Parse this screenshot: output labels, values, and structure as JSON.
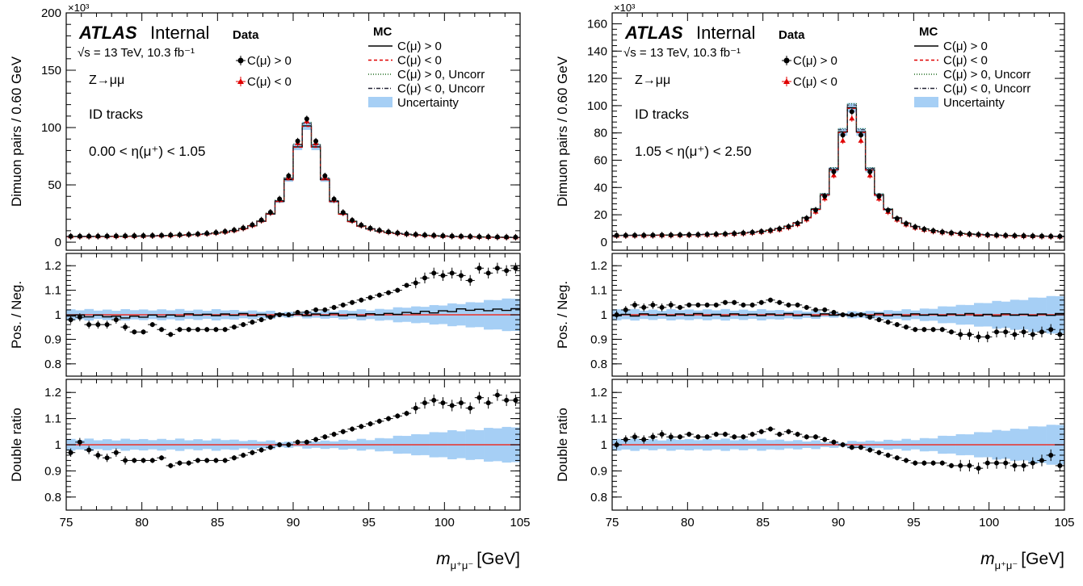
{
  "chart_data": [
    {
      "type": "line",
      "panel": "left",
      "atlas_label": "ATLAS",
      "atlas_status": "Internal",
      "energy_label": "√s = 13 TeV, 10.3 fb⁻¹",
      "process_label": "Z→μμ",
      "tracks_label": "ID tracks",
      "eta_label": "0.00 < η(μ⁺) < 1.05",
      "multiplier": "×10³",
      "legend": {
        "data_header": "Data",
        "mc_header": "MC",
        "data_entries": [
          "C(μ) > 0",
          "C(μ) < 0"
        ],
        "mc_entries": [
          "C(μ) > 0",
          "C(μ) < 0",
          "C(μ) > 0, Uncorr",
          "C(μ) < 0, Uncorr",
          "Uncertainty"
        ]
      },
      "xlabel": "m_{μ⁺μ⁻} [GeV]",
      "xlabel_main": "m",
      "xlabel_sub": "μ⁺μ⁻",
      "xlabel_unit": "[GeV]",
      "xlim": [
        75,
        105
      ],
      "x_ticks": [
        "75",
        "80",
        "85",
        "90",
        "95",
        "100",
        "105"
      ],
      "top": {
        "ylabel": "Dimuon pairs / 0.60 GeV",
        "ylim": [
          -7,
          200
        ],
        "y_ticks": [
          "0",
          "50",
          "100",
          "150",
          "200"
        ],
        "peak_mc": 99,
        "peak_data": 105,
        "peak_data_neg": 103
      },
      "ratio": {
        "ylabel": "Pos. / Neg.",
        "ylim": [
          0.75,
          1.25
        ],
        "y_ticks": [
          "0.8",
          "0.9",
          "1",
          "1.1",
          "1.2"
        ],
        "points": [
          [
            75.3,
            0.98
          ],
          [
            75.9,
            0.99
          ],
          [
            76.5,
            0.96
          ],
          [
            77.1,
            0.96
          ],
          [
            77.7,
            0.96
          ],
          [
            78.3,
            0.98
          ],
          [
            78.9,
            0.95
          ],
          [
            79.5,
            0.93
          ],
          [
            80.1,
            0.93
          ],
          [
            80.7,
            0.96
          ],
          [
            81.3,
            0.94
          ],
          [
            81.9,
            0.92
          ],
          [
            82.5,
            0.94
          ],
          [
            83.1,
            0.94
          ],
          [
            83.7,
            0.94
          ],
          [
            84.3,
            0.94
          ],
          [
            84.9,
            0.94
          ],
          [
            85.5,
            0.94
          ],
          [
            86.1,
            0.95
          ],
          [
            86.7,
            0.96
          ],
          [
            87.3,
            0.97
          ],
          [
            87.9,
            0.98
          ],
          [
            88.5,
            0.99
          ],
          [
            89.1,
            1.0
          ],
          [
            89.7,
            1.0
          ],
          [
            90.3,
            1.01
          ],
          [
            90.9,
            1.01
          ],
          [
            91.5,
            1.02
          ],
          [
            92.1,
            1.02
          ],
          [
            92.7,
            1.03
          ],
          [
            93.3,
            1.04
          ],
          [
            93.9,
            1.05
          ],
          [
            94.5,
            1.06
          ],
          [
            95.1,
            1.07
          ],
          [
            95.7,
            1.08
          ],
          [
            96.3,
            1.09
          ],
          [
            96.9,
            1.1
          ],
          [
            97.5,
            1.12
          ],
          [
            98.1,
            1.13
          ],
          [
            98.7,
            1.15
          ],
          [
            99.3,
            1.17
          ],
          [
            99.9,
            1.16
          ],
          [
            100.5,
            1.17
          ],
          [
            101.1,
            1.16
          ],
          [
            101.7,
            1.14
          ],
          [
            102.3,
            1.19
          ],
          [
            102.9,
            1.17
          ],
          [
            103.5,
            1.19
          ],
          [
            104.1,
            1.18
          ],
          [
            104.7,
            1.19
          ]
        ],
        "mc_line": [
          [
            75,
            1.0
          ],
          [
            79,
            0.99
          ],
          [
            83,
            1.0
          ],
          [
            87,
            1.0
          ],
          [
            91,
            1.0
          ],
          [
            95,
            1.0
          ],
          [
            99,
            1.01
          ],
          [
            101,
            1.02
          ],
          [
            105,
            1.02
          ]
        ],
        "band_halfwidth": [
          [
            75,
            0.02
          ],
          [
            85,
            0.02
          ],
          [
            90,
            0.01
          ],
          [
            95,
            0.02
          ],
          [
            100,
            0.04
          ],
          [
            105,
            0.07
          ]
        ]
      },
      "double": {
        "ylabel": "Double ratio",
        "ylim": [
          0.75,
          1.25
        ],
        "y_ticks": [
          "0.8",
          "0.9",
          "1",
          "1.1",
          "1.2"
        ],
        "points": [
          [
            75.3,
            0.97
          ],
          [
            75.9,
            1.01
          ],
          [
            76.5,
            0.98
          ],
          [
            77.1,
            0.96
          ],
          [
            77.7,
            0.95
          ],
          [
            78.3,
            0.97
          ],
          [
            78.9,
            0.94
          ],
          [
            79.5,
            0.94
          ],
          [
            80.1,
            0.94
          ],
          [
            80.7,
            0.94
          ],
          [
            81.3,
            0.95
          ],
          [
            81.9,
            0.92
          ],
          [
            82.5,
            0.93
          ],
          [
            83.1,
            0.93
          ],
          [
            83.7,
            0.94
          ],
          [
            84.3,
            0.94
          ],
          [
            84.9,
            0.94
          ],
          [
            85.5,
            0.94
          ],
          [
            86.1,
            0.95
          ],
          [
            86.7,
            0.96
          ],
          [
            87.3,
            0.97
          ],
          [
            87.9,
            0.98
          ],
          [
            88.5,
            0.99
          ],
          [
            89.1,
            1.0
          ],
          [
            89.7,
            1.0
          ],
          [
            90.3,
            1.01
          ],
          [
            90.9,
            1.01
          ],
          [
            91.5,
            1.02
          ],
          [
            92.1,
            1.03
          ],
          [
            92.7,
            1.04
          ],
          [
            93.3,
            1.05
          ],
          [
            93.9,
            1.06
          ],
          [
            94.5,
            1.07
          ],
          [
            95.1,
            1.08
          ],
          [
            95.7,
            1.09
          ],
          [
            96.3,
            1.1
          ],
          [
            96.9,
            1.11
          ],
          [
            97.5,
            1.12
          ],
          [
            98.1,
            1.14
          ],
          [
            98.7,
            1.16
          ],
          [
            99.3,
            1.17
          ],
          [
            99.9,
            1.16
          ],
          [
            100.5,
            1.15
          ],
          [
            101.1,
            1.16
          ],
          [
            101.7,
            1.14
          ],
          [
            102.3,
            1.18
          ],
          [
            102.9,
            1.16
          ],
          [
            103.5,
            1.19
          ],
          [
            104.1,
            1.17
          ],
          [
            104.7,
            1.17
          ]
        ],
        "band_halfwidth": [
          [
            75,
            0.02
          ],
          [
            85,
            0.02
          ],
          [
            90,
            0.01
          ],
          [
            95,
            0.02
          ],
          [
            100,
            0.05
          ],
          [
            105,
            0.07
          ]
        ]
      }
    },
    {
      "type": "line",
      "panel": "right",
      "atlas_label": "ATLAS",
      "atlas_status": "Internal",
      "energy_label": "√s = 13 TeV, 10.3 fb⁻¹",
      "process_label": "Z→μμ",
      "tracks_label": "ID tracks",
      "eta_label": "1.05 < η(μ⁺) < 2.50",
      "multiplier": "×10³",
      "legend": {
        "data_header": "Data",
        "mc_header": "MC",
        "data_entries": [
          "C(μ) > 0",
          "C(μ) < 0"
        ],
        "mc_entries": [
          "C(μ) > 0",
          "C(μ) < 0",
          "C(μ) > 0, Uncorr",
          "C(μ) < 0, Uncorr",
          "Uncertainty"
        ]
      },
      "xlabel": "m_{μ⁺μ⁻} [GeV]",
      "xlabel_main": "m",
      "xlabel_sub": "μ⁺μ⁻",
      "xlabel_unit": "[GeV]",
      "xlim": [
        75,
        105
      ],
      "x_ticks": [
        "75",
        "80",
        "85",
        "90",
        "95",
        "100",
        "105"
      ],
      "top": {
        "ylabel": "Dimuon pairs / 0.60 GeV",
        "ylim": [
          -6,
          168
        ],
        "y_ticks": [
          "0",
          "20",
          "40",
          "60",
          "80",
          "100",
          "120",
          "140",
          "160"
        ],
        "peak_mc": 96,
        "peak_data": 93,
        "peak_data_neg": 88
      },
      "ratio": {
        "ylabel": "Pos. / Neg.",
        "ylim": [
          0.75,
          1.25
        ],
        "y_ticks": [
          "0.8",
          "0.9",
          "1",
          "1.1",
          "1.2"
        ],
        "points": [
          [
            75.3,
            1.0
          ],
          [
            75.9,
            1.02
          ],
          [
            76.5,
            1.04
          ],
          [
            77.1,
            1.03
          ],
          [
            77.7,
            1.04
          ],
          [
            78.3,
            1.03
          ],
          [
            78.9,
            1.04
          ],
          [
            79.5,
            1.03
          ],
          [
            80.1,
            1.04
          ],
          [
            80.7,
            1.04
          ],
          [
            81.3,
            1.04
          ],
          [
            81.9,
            1.04
          ],
          [
            82.5,
            1.05
          ],
          [
            83.1,
            1.05
          ],
          [
            83.7,
            1.04
          ],
          [
            84.3,
            1.04
          ],
          [
            84.9,
            1.05
          ],
          [
            85.5,
            1.06
          ],
          [
            86.1,
            1.05
          ],
          [
            86.7,
            1.04
          ],
          [
            87.3,
            1.04
          ],
          [
            87.9,
            1.03
          ],
          [
            88.5,
            1.02
          ],
          [
            89.1,
            1.02
          ],
          [
            89.7,
            1.01
          ],
          [
            90.3,
            1.0
          ],
          [
            90.9,
            1.0
          ],
          [
            91.5,
            1.0
          ],
          [
            92.1,
            0.99
          ],
          [
            92.7,
            0.98
          ],
          [
            93.3,
            0.97
          ],
          [
            93.9,
            0.96
          ],
          [
            94.5,
            0.95
          ],
          [
            95.1,
            0.94
          ],
          [
            95.7,
            0.94
          ],
          [
            96.3,
            0.94
          ],
          [
            96.9,
            0.94
          ],
          [
            97.5,
            0.93
          ],
          [
            98.1,
            0.92
          ],
          [
            98.7,
            0.92
          ],
          [
            99.3,
            0.91
          ],
          [
            99.9,
            0.91
          ],
          [
            100.5,
            0.93
          ],
          [
            101.1,
            0.93
          ],
          [
            101.7,
            0.92
          ],
          [
            102.3,
            0.93
          ],
          [
            102.9,
            0.92
          ],
          [
            103.5,
            0.93
          ],
          [
            104.1,
            0.94
          ],
          [
            104.7,
            0.92
          ]
        ],
        "mc_line": [
          [
            75,
            1.0
          ],
          [
            80,
            1.0
          ],
          [
            85,
            1.0
          ],
          [
            90,
            1.0
          ],
          [
            95,
            1.0
          ],
          [
            100,
            1.0
          ],
          [
            105,
            1.0
          ]
        ],
        "band_halfwidth": [
          [
            75,
            0.02
          ],
          [
            85,
            0.02
          ],
          [
            90,
            0.01
          ],
          [
            95,
            0.02
          ],
          [
            100,
            0.05
          ],
          [
            105,
            0.08
          ]
        ]
      },
      "double": {
        "ylabel": "Double ratio",
        "ylim": [
          0.75,
          1.25
        ],
        "y_ticks": [
          "0.8",
          "0.9",
          "1",
          "1.1",
          "1.2"
        ],
        "points": [
          [
            75.3,
            1.0
          ],
          [
            75.9,
            1.02
          ],
          [
            76.5,
            1.03
          ],
          [
            77.1,
            1.02
          ],
          [
            77.7,
            1.03
          ],
          [
            78.3,
            1.04
          ],
          [
            78.9,
            1.03
          ],
          [
            79.5,
            1.03
          ],
          [
            80.1,
            1.04
          ],
          [
            80.7,
            1.03
          ],
          [
            81.3,
            1.03
          ],
          [
            81.9,
            1.04
          ],
          [
            82.5,
            1.04
          ],
          [
            83.1,
            1.03
          ],
          [
            83.7,
            1.03
          ],
          [
            84.3,
            1.04
          ],
          [
            84.9,
            1.05
          ],
          [
            85.5,
            1.06
          ],
          [
            86.1,
            1.04
          ],
          [
            86.7,
            1.05
          ],
          [
            87.3,
            1.04
          ],
          [
            87.9,
            1.03
          ],
          [
            88.5,
            1.03
          ],
          [
            89.1,
            1.02
          ],
          [
            89.7,
            1.01
          ],
          [
            90.3,
            1.0
          ],
          [
            90.9,
            0.99
          ],
          [
            91.5,
            0.99
          ],
          [
            92.1,
            0.98
          ],
          [
            92.7,
            0.97
          ],
          [
            93.3,
            0.96
          ],
          [
            93.9,
            0.95
          ],
          [
            94.5,
            0.94
          ],
          [
            95.1,
            0.93
          ],
          [
            95.7,
            0.93
          ],
          [
            96.3,
            0.93
          ],
          [
            96.9,
            0.93
          ],
          [
            97.5,
            0.92
          ],
          [
            98.1,
            0.92
          ],
          [
            98.7,
            0.92
          ],
          [
            99.3,
            0.91
          ],
          [
            99.9,
            0.93
          ],
          [
            100.5,
            0.93
          ],
          [
            101.1,
            0.93
          ],
          [
            101.7,
            0.92
          ],
          [
            102.3,
            0.92
          ],
          [
            102.9,
            0.93
          ],
          [
            103.5,
            0.94
          ],
          [
            104.1,
            0.96
          ],
          [
            104.7,
            0.92
          ]
        ],
        "band_halfwidth": [
          [
            75,
            0.02
          ],
          [
            85,
            0.02
          ],
          [
            90,
            0.01
          ],
          [
            95,
            0.02
          ],
          [
            100,
            0.05
          ],
          [
            105,
            0.08
          ]
        ]
      }
    }
  ],
  "colors": {
    "uncertainty": "#a6cff5",
    "mc_neg": "#e00000",
    "data": "#000000",
    "unity": "#e8302a"
  }
}
